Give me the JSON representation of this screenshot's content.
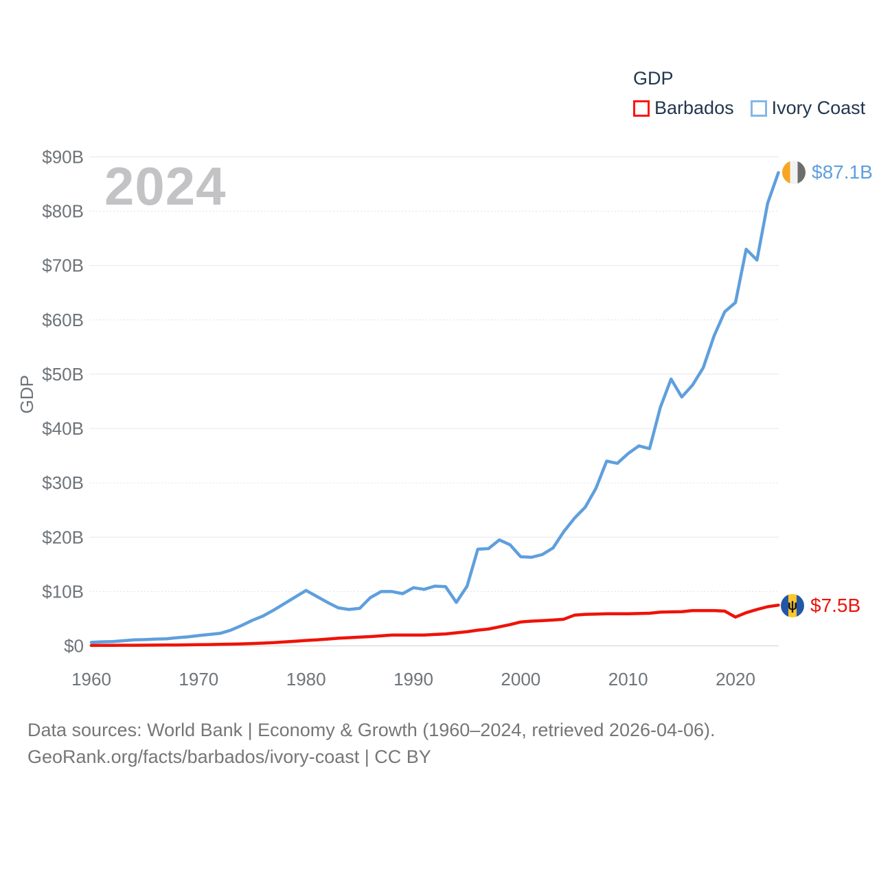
{
  "watermark": "2024",
  "legend": {
    "title": "GDP",
    "items": [
      {
        "label": "Barbados",
        "swatch_color": "#fe1412"
      },
      {
        "label": "Ivory Coast",
        "swatch_color": "#85b6e8"
      }
    ]
  },
  "chart_data": {
    "type": "line",
    "title": "GDP",
    "ylabel": "GDP",
    "xlabel": "",
    "ylim": [
      0,
      93
    ],
    "grid": true,
    "legend_position": "top-right",
    "x_ticks": [
      "1960",
      "1970",
      "1980",
      "1990",
      "2000",
      "2010",
      "2020"
    ],
    "y_ticks": [
      {
        "value": 0,
        "label": "$0"
      },
      {
        "value": 10,
        "label": "$10B"
      },
      {
        "value": 20,
        "label": "$20B"
      },
      {
        "value": 30,
        "label": "$30B"
      },
      {
        "value": 40,
        "label": "$40B"
      },
      {
        "value": 50,
        "label": "$50B"
      },
      {
        "value": 60,
        "label": "$60B"
      },
      {
        "value": 70,
        "label": "$70B"
      },
      {
        "value": 80,
        "label": "$80B"
      },
      {
        "value": 90,
        "label": "$90B"
      }
    ],
    "x": [
      1960,
      1961,
      1962,
      1963,
      1964,
      1965,
      1966,
      1967,
      1968,
      1969,
      1970,
      1971,
      1972,
      1973,
      1974,
      1975,
      1976,
      1977,
      1978,
      1979,
      1980,
      1981,
      1982,
      1983,
      1984,
      1985,
      1986,
      1987,
      1988,
      1989,
      1990,
      1991,
      1992,
      1993,
      1994,
      1995,
      1996,
      1997,
      1998,
      1999,
      2000,
      2001,
      2002,
      2003,
      2004,
      2005,
      2006,
      2007,
      2008,
      2009,
      2010,
      2011,
      2012,
      2013,
      2014,
      2015,
      2016,
      2017,
      2018,
      2019,
      2020,
      2021,
      2022,
      2023,
      2024
    ],
    "series": [
      {
        "name": "Barbados",
        "color": "#ee1309",
        "end_label": "$7.5B",
        "values": [
          0.08,
          0.09,
          0.1,
          0.11,
          0.12,
          0.13,
          0.14,
          0.15,
          0.17,
          0.19,
          0.21,
          0.24,
          0.28,
          0.32,
          0.37,
          0.43,
          0.5,
          0.6,
          0.72,
          0.85,
          1.0,
          1.1,
          1.25,
          1.4,
          1.5,
          1.6,
          1.7,
          1.85,
          2.0,
          2.0,
          2.0,
          2.0,
          2.1,
          2.2,
          2.4,
          2.6,
          2.9,
          3.1,
          3.5,
          3.9,
          4.4,
          4.55,
          4.65,
          4.75,
          4.9,
          5.65,
          5.8,
          5.85,
          5.9,
          5.9,
          5.9,
          5.95,
          6.0,
          6.2,
          6.25,
          6.3,
          6.5,
          6.5,
          6.5,
          6.4,
          5.3,
          6.1,
          6.7,
          7.2,
          7.5
        ]
      },
      {
        "name": "Ivory Coast",
        "color": "#5f9fdd",
        "end_label": "$87.1B",
        "values": [
          0.65,
          0.75,
          0.8,
          0.95,
          1.1,
          1.15,
          1.25,
          1.3,
          1.5,
          1.65,
          1.9,
          2.1,
          2.3,
          2.9,
          3.75,
          4.7,
          5.5,
          6.6,
          7.8,
          9.0,
          10.2,
          9.1,
          8.0,
          7.0,
          6.7,
          6.9,
          8.9,
          10.0,
          10.0,
          9.6,
          10.7,
          10.4,
          11.0,
          10.9,
          8.0,
          11.0,
          17.8,
          17.9,
          19.5,
          18.6,
          16.4,
          16.3,
          16.8,
          18.0,
          21.0,
          23.5,
          25.5,
          29.0,
          34.0,
          33.6,
          35.4,
          36.8,
          36.3,
          43.9,
          49.1,
          45.8,
          48.0,
          51.2,
          57.0,
          61.5,
          63.2,
          73.0,
          71.0,
          81.5,
          87.1
        ]
      }
    ]
  },
  "flags": {
    "barbados_trident_glyph": "ψ"
  },
  "footer": {
    "line1": "Data sources: World Bank | Economy & Growth (1960–2024, retrieved 2026-04-06).",
    "line2": "GeoRank.org/facts/barbados/ivory-coast | CC BY"
  }
}
